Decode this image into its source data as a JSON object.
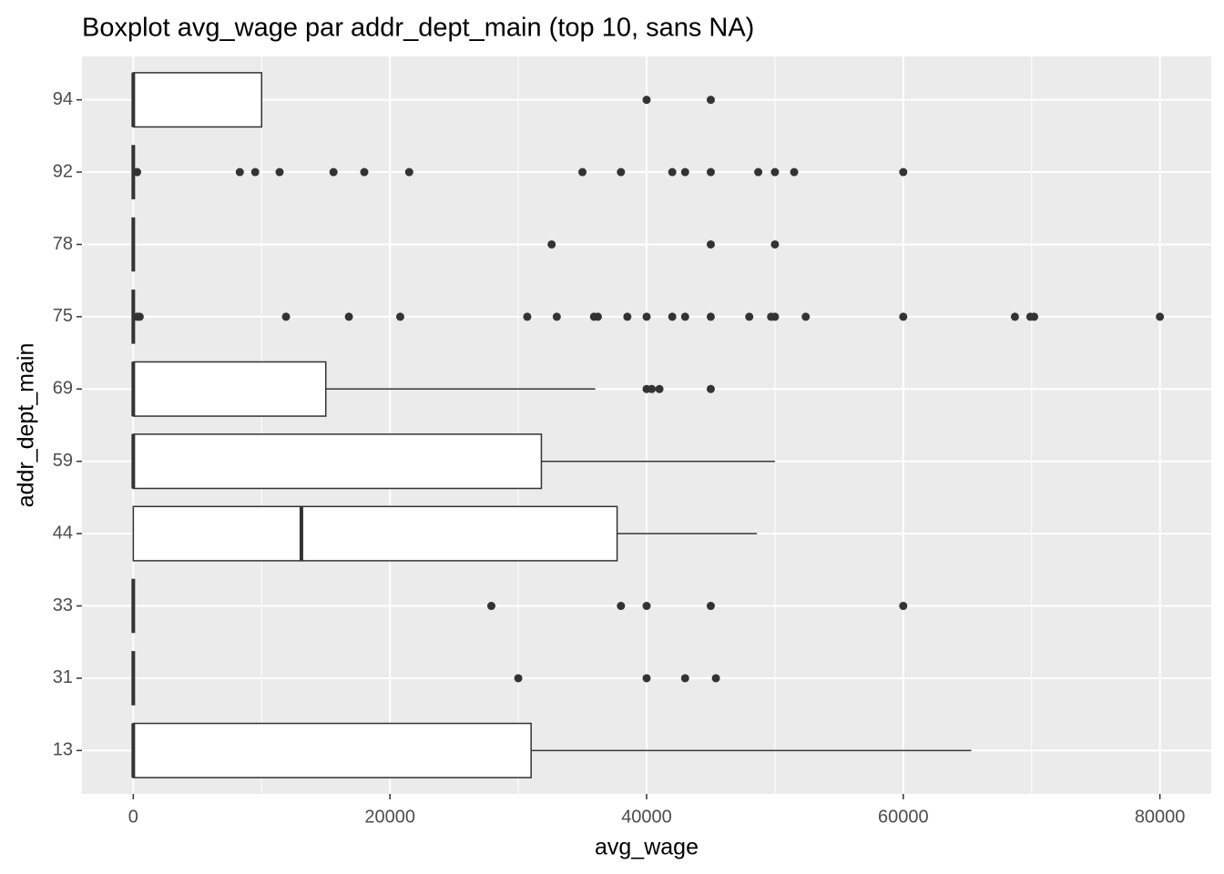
{
  "chart_data": {
    "type": "boxplot",
    "title": "Boxplot avg_wage par addr_dept_main (top 10, sans NA)",
    "x_label": "avg_wage",
    "y_label": "addr_dept_main",
    "orientation": "horizontal",
    "categories": [
      "13",
      "31",
      "33",
      "44",
      "59",
      "69",
      "75",
      "78",
      "92",
      "94"
    ],
    "boxes": [
      {
        "low": 0,
        "q1": 0,
        "median": 0,
        "q3": 31000,
        "high": 65300,
        "outliers": []
      },
      {
        "low": 0,
        "q1": 0,
        "median": 0,
        "q3": 0,
        "high": 0,
        "outliers": [
          30000,
          40000,
          43000,
          45400
        ]
      },
      {
        "low": 0,
        "q1": 0,
        "median": 0,
        "q3": 0,
        "high": 0,
        "outliers": [
          27900,
          38000,
          40000,
          45000,
          60000
        ]
      },
      {
        "low": 0,
        "q1": 0,
        "median": 13100,
        "q3": 37700,
        "high": 48600,
        "outliers": []
      },
      {
        "low": 0,
        "q1": 0,
        "median": 0,
        "q3": 31800,
        "high": 50000,
        "outliers": []
      },
      {
        "low": 0,
        "q1": 0,
        "median": 0,
        "q3": 15000,
        "high": 36000,
        "outliers": [
          40000,
          40400,
          41000,
          45000
        ]
      },
      {
        "low": 0,
        "q1": 0,
        "median": 0,
        "q3": 0,
        "high": 0,
        "outliers": [
          300,
          500,
          11900,
          16800,
          20800,
          30700,
          33000,
          35900,
          36200,
          38500,
          40000,
          42000,
          43000,
          45000,
          48000,
          49700,
          50000,
          52400,
          60000,
          68700,
          69900,
          70200,
          80000
        ]
      },
      {
        "low": 0,
        "q1": 0,
        "median": 0,
        "q3": 0,
        "high": 0,
        "outliers": [
          32600,
          45000,
          50000
        ]
      },
      {
        "low": 0,
        "q1": 0,
        "median": 0,
        "q3": 0,
        "high": 0,
        "outliers": [
          300,
          8300,
          9500,
          11400,
          15600,
          18000,
          21500,
          35000,
          38000,
          42000,
          43000,
          45000,
          48700,
          50000,
          51500,
          60000
        ]
      },
      {
        "low": 0,
        "q1": 0,
        "median": 0,
        "q3": 10000,
        "high": 10000,
        "outliers": [
          40000,
          45000
        ]
      }
    ],
    "box_fill": "#ffffff",
    "line_color": "#333333",
    "background": "#EBEBEB",
    "grid": true,
    "xlim": [
      -4000,
      84000
    ],
    "xticks": [
      0,
      20000,
      40000,
      60000,
      80000
    ]
  }
}
